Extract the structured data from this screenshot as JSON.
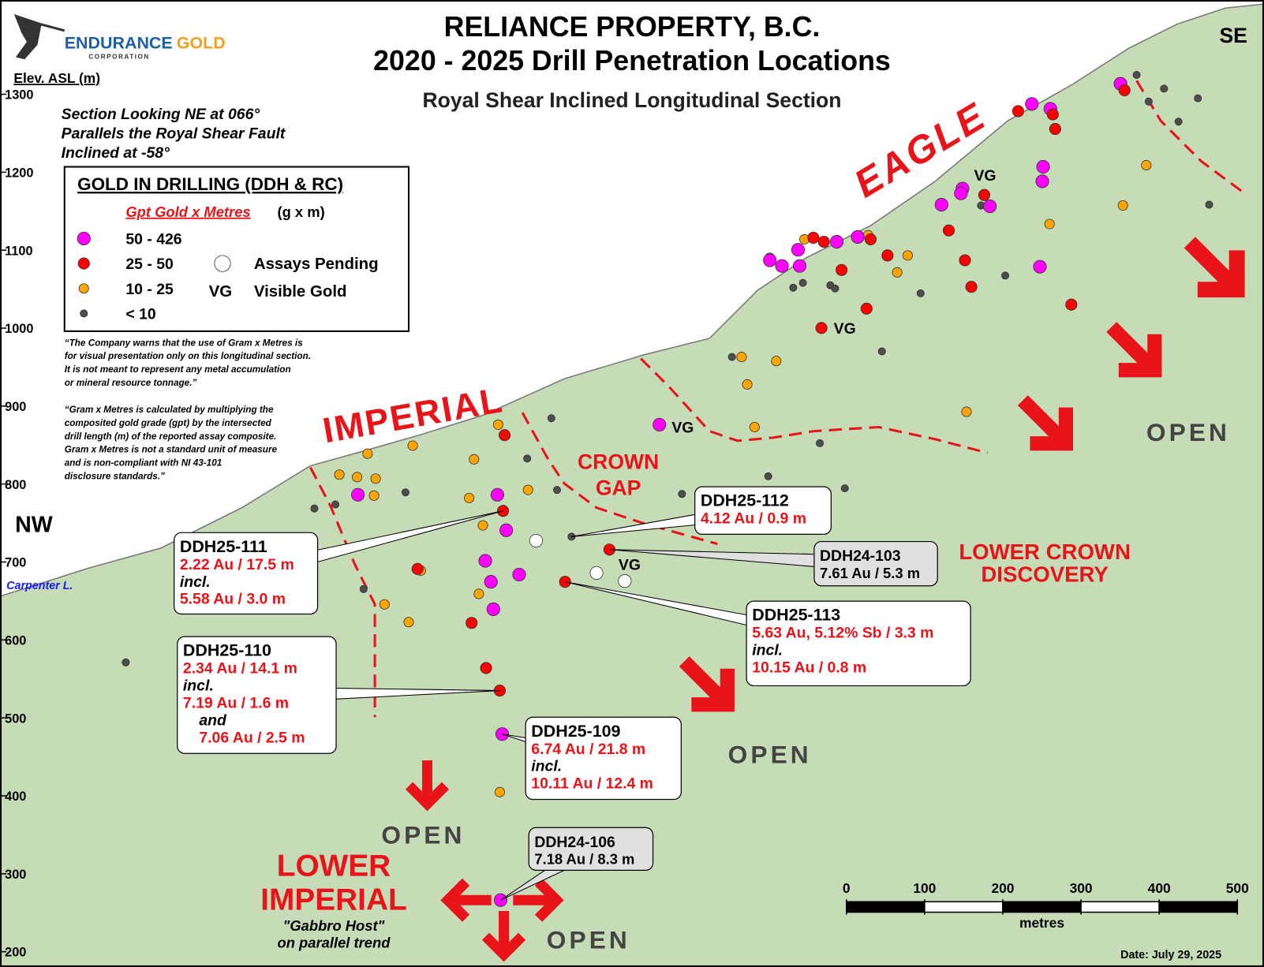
{
  "header": {
    "title_line1": "RELIANCE PROPERTY, B.C.",
    "title_line2": "2020 - 2025 Drill Penetration Locations",
    "subtitle": "Royal Shear Inclined Longitudinal Section"
  },
  "logo": {
    "name_part1": "ENDURANCE",
    "name_part2": "GOLD",
    "tagline": "CORPORATION"
  },
  "orientation": {
    "left": "NW",
    "right": "SE"
  },
  "elevation_axis": {
    "label": "Elev. ASL (m)",
    "ticks": [
      1300,
      1200,
      1100,
      1000,
      900,
      800,
      700,
      600,
      500,
      400,
      300,
      200
    ]
  },
  "section_notes": [
    "Section Looking NE at 066°",
    "Parallels the Royal Shear Fault",
    "Inclined at -58°"
  ],
  "legend": {
    "title": "GOLD IN DRILLING (DDH & RC)",
    "metric": "Gpt Gold x Metres",
    "metric_unit": "(g x m)",
    "items": [
      {
        "label": "50 - 426",
        "color": "#ff00ff"
      },
      {
        "label": "25 - 50",
        "color": "#ff0000"
      },
      {
        "label": "10 - 25",
        "color": "#ffa500"
      },
      {
        "label": "< 10",
        "color": "#4d4d4d"
      }
    ],
    "pending": "Assays Pending",
    "vg_symbol": "VG",
    "vg_label": "Visible Gold"
  },
  "disclaimers": [
    [
      "“The Company warns that the use of Gram x Metres is",
      "for visual presentation only on this longitudinal section.",
      "It is not meant to represent any metal accumulation",
      "or mineral resource tonnage.”"
    ],
    [
      "“Gram x Metres is calculated by multiplying the",
      "composited gold grade (gpt) by the intersected",
      "drill length (m) of the reported assay composite.",
      "Gram x Metres is not a standard unit of measure",
      "and is non-compliant with NI 43-101",
      "disclosure standards.”"
    ]
  ],
  "lake": "Carpenter L.",
  "zones": {
    "eagle": "EAGLE",
    "imperial": "IMPERIAL",
    "crown_gap": [
      "CROWN",
      "GAP"
    ],
    "lower_crown": [
      "LOWER CROWN",
      "DISCOVERY"
    ],
    "lower_imperial": [
      "LOWER",
      "IMPERIAL"
    ],
    "lower_imperial_note": [
      "\"Gabbro Host\"",
      "on parallel trend"
    ]
  },
  "open_labels": [
    "OPEN",
    "OPEN",
    "OPEN",
    "OPEN"
  ],
  "vg_labels": [
    "VG",
    "VG",
    "VG",
    "VG"
  ],
  "callouts": [
    {
      "id": "DDH25-111",
      "lines": [
        "2.22 Au / 17.5 m",
        "incl.",
        "5.58 Au / 3.0 m"
      ]
    },
    {
      "id": "DDH25-112",
      "lines": [
        "4.12 Au / 0.9 m"
      ]
    },
    {
      "id": "DDH24-103",
      "lines": [
        "7.61 Au / 5.3 m"
      ]
    },
    {
      "id": "DDH25-113",
      "lines": [
        "5.63 Au, 5.12% Sb / 3.3 m",
        "incl.",
        "10.15 Au / 0.8 m"
      ]
    },
    {
      "id": "DDH25-110",
      "lines": [
        "2.34 Au / 14.1 m",
        "incl.",
        "7.19 Au / 1.6 m",
        "and",
        "7.06 Au / 2.5 m"
      ]
    },
    {
      "id": "DDH25-109",
      "lines": [
        "6.74 Au / 21.8 m",
        "incl.",
        "10.11 Au / 12.4 m"
      ]
    },
    {
      "id": "DDH24-106",
      "lines": [
        "7.18 Au / 8.3 m"
      ]
    }
  ],
  "scale_bar": {
    "ticks": [
      0,
      100,
      200,
      300,
      400,
      500
    ],
    "unit": "metres"
  },
  "footer": {
    "date": "Date:  July 29, 2025"
  }
}
